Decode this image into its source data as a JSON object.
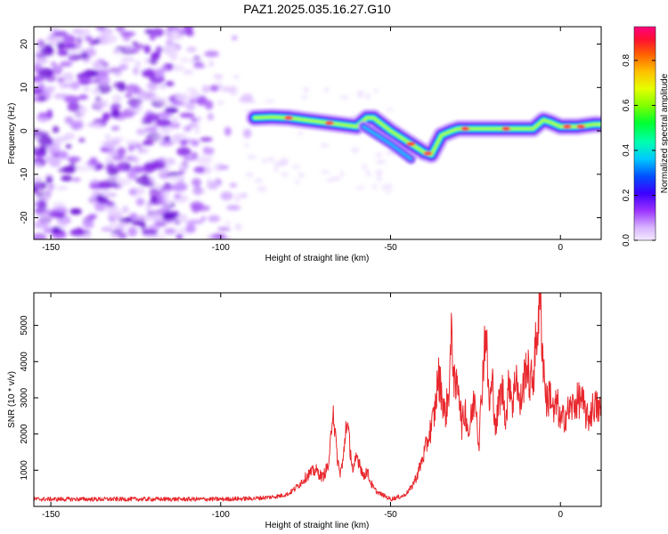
{
  "title": "PAZ1.2025.035.16.27.G10",
  "chart_data": [
    {
      "type": "heatmap",
      "xlabel": "Height of straight line (km)",
      "ylabel": "Frequency (Hz)",
      "xlim": [
        -155,
        12
      ],
      "ylim": [
        -25,
        24
      ],
      "xticks": [
        -150,
        -100,
        -50,
        0
      ],
      "yticks": [
        -20,
        -10,
        0,
        10,
        20
      ],
      "colorbar": {
        "label": "Normalized spectral amplitude",
        "range": [
          0.0,
          0.95
        ],
        "ticks": [
          0.0,
          0.2,
          0.4,
          0.6,
          0.8
        ]
      },
      "ridge": {
        "x": [
          -90,
          -85,
          -80,
          -75,
          -70,
          -65,
          -60,
          -57,
          -55,
          -50,
          -45,
          -40,
          -38,
          -35,
          -32,
          -30,
          -25,
          -20,
          -15,
          -10,
          -8,
          -5,
          -3,
          0,
          5,
          10,
          12
        ],
        "y": [
          3,
          3.2,
          3,
          2.5,
          2,
          1.5,
          1,
          3,
          3,
          0,
          -2.5,
          -5,
          -5.5,
          -1,
          0,
          0.5,
          0.5,
          0.5,
          0.5,
          0.5,
          0.5,
          2.5,
          2,
          1,
          1,
          1.5,
          1.5
        ]
      },
      "noise_region": {
        "x": [
          -155,
          -88
        ],
        "y": [
          -25,
          24
        ]
      }
    },
    {
      "type": "line",
      "xlabel": "Height of straight line (km)",
      "ylabel": "SNR (10 * v/v)",
      "xlim": [
        -155,
        12
      ],
      "ylim": [
        0,
        5900
      ],
      "xticks": [
        -150,
        -100,
        -50,
        0
      ],
      "yticks": [
        1000,
        2000,
        3000,
        4000,
        5000
      ],
      "color": "#e8282d",
      "x": [
        -155,
        -140,
        -120,
        -100,
        -90,
        -85,
        -82,
        -80,
        -78,
        -76,
        -74,
        -72,
        -70,
        -68,
        -67,
        -66,
        -65,
        -64,
        -63,
        -62,
        -61,
        -60,
        -59,
        -58,
        -57,
        -56,
        -55,
        -54,
        -53,
        -52,
        -50,
        -48,
        -46,
        -44,
        -42,
        -40,
        -38,
        -37,
        -36,
        -35,
        -34,
        -33,
        -32,
        -31,
        -30,
        -29,
        -28,
        -27,
        -26,
        -25,
        -24,
        -23,
        -22,
        -21,
        -20,
        -19,
        -18,
        -17,
        -16,
        -15,
        -14,
        -13,
        -12,
        -11,
        -10,
        -9,
        -8,
        -7,
        -6,
        -5,
        -4,
        -3,
        -2,
        -1,
        0,
        2,
        4,
        6,
        8,
        10,
        12
      ],
      "y": [
        200,
        200,
        200,
        200,
        220,
        260,
        300,
        350,
        500,
        700,
        900,
        1000,
        800,
        1200,
        2900,
        1600,
        900,
        1200,
        2400,
        1700,
        900,
        1400,
        1200,
        800,
        1000,
        700,
        500,
        400,
        350,
        300,
        200,
        250,
        300,
        500,
        900,
        1500,
        2200,
        2600,
        3600,
        3200,
        2500,
        3000,
        4800,
        3100,
        3500,
        2200,
        2700,
        2000,
        2600,
        3100,
        1700,
        3500,
        5000,
        2800,
        3400,
        2100,
        3000,
        3200,
        2400,
        3600,
        2800,
        3800,
        2700,
        3300,
        4000,
        3400,
        3600,
        4700,
        5800,
        3900,
        2800,
        3200,
        2500,
        2900,
        2300,
        2600,
        2800,
        3000,
        2400,
        2800,
        2600
      ]
    }
  ]
}
